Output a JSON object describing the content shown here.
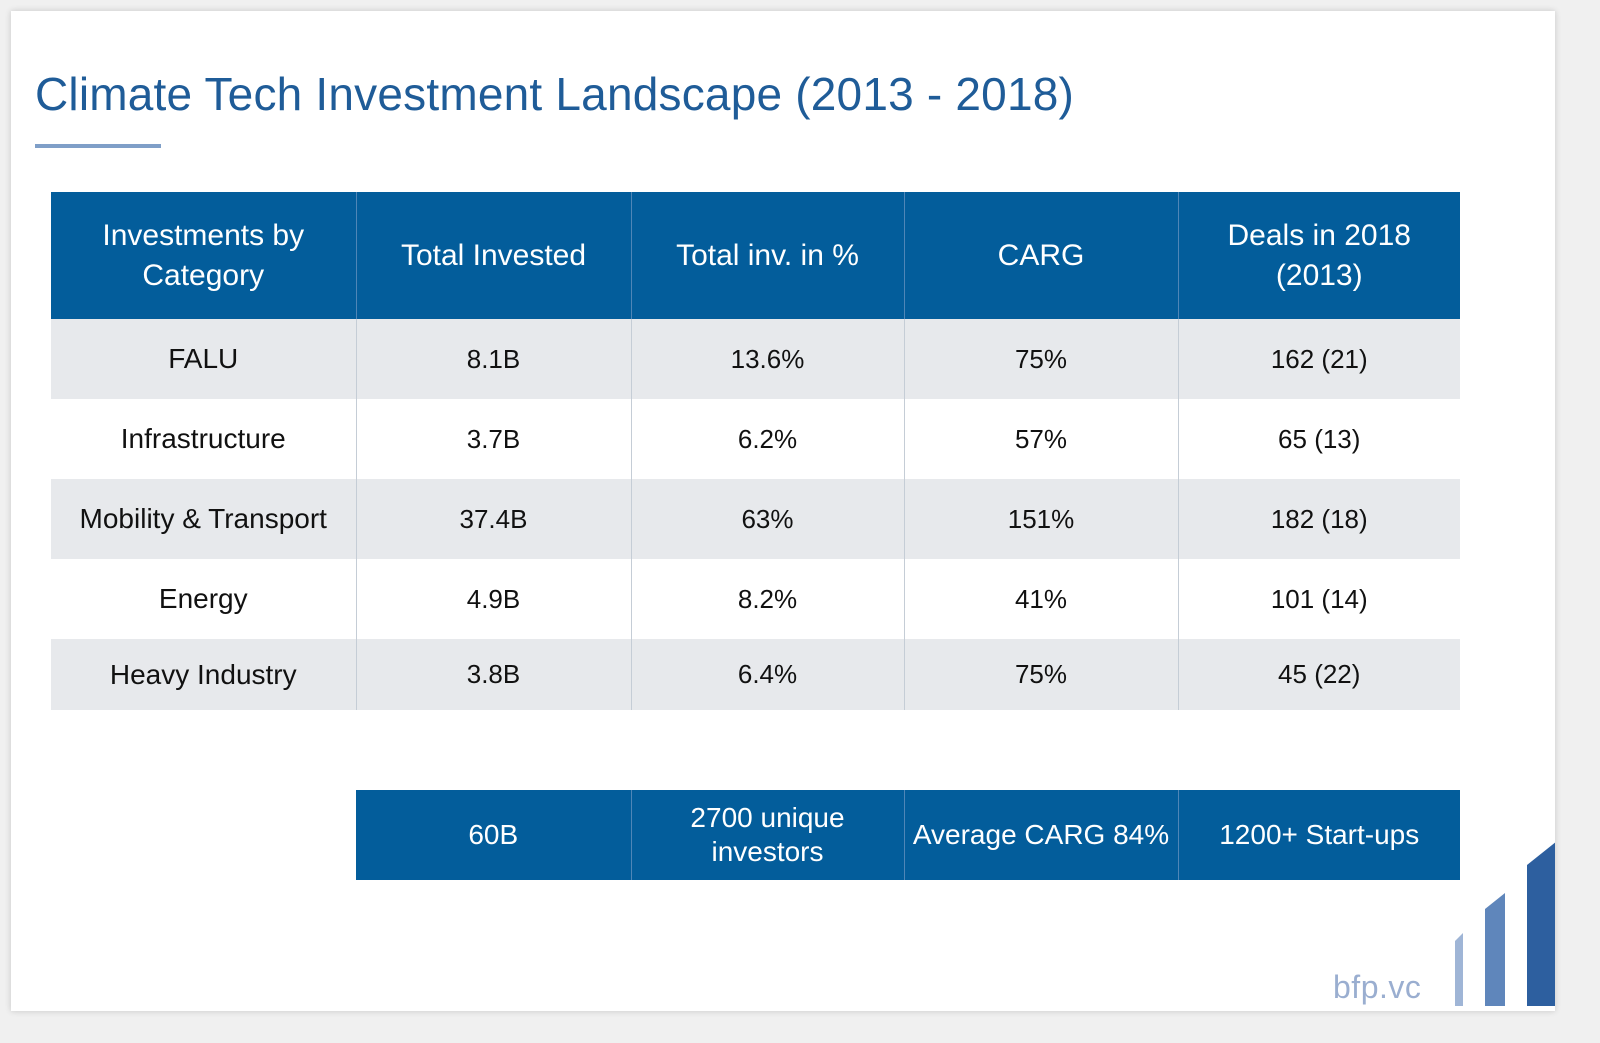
{
  "title": "Climate Tech Investment Landscape (2013 - 2018)",
  "table": {
    "headers": [
      "Investments by Category",
      "Total Invested",
      "Total inv. in %",
      "CARG",
      "Deals in 2018 (2013)"
    ],
    "rows": [
      {
        "category": "FALU",
        "total_invested": "8.1B",
        "percent": "13.6%",
        "carg": "75%",
        "deals": "162 (21)"
      },
      {
        "category": "Infrastructure",
        "total_invested": "3.7B",
        "percent": "6.2%",
        "carg": "57%",
        "deals": "65 (13)"
      },
      {
        "category": "Mobility & Transport",
        "total_invested": "37.4B",
        "percent": "63%",
        "carg": "151%",
        "deals": "182 (18)"
      },
      {
        "category": "Energy",
        "total_invested": "4.9B",
        "percent": "8.2%",
        "carg": "41%",
        "deals": "101 (14)"
      },
      {
        "category": "Heavy Industry",
        "total_invested": "3.8B",
        "percent": "6.4%",
        "carg": "75%",
        "deals": "45 (22)"
      }
    ]
  },
  "summary": [
    "60B",
    "2700 unique investors",
    "Average CARG 84%",
    "1200+ Start-ups"
  ],
  "brand": "bfp.vc",
  "colors": {
    "header_bg": "#035d9b",
    "title": "#1f5c98",
    "row_shade": "#e7e9ec",
    "brand_text": "#9aaed0"
  },
  "icons": {
    "logo": "bar-chart-logo-icon"
  }
}
